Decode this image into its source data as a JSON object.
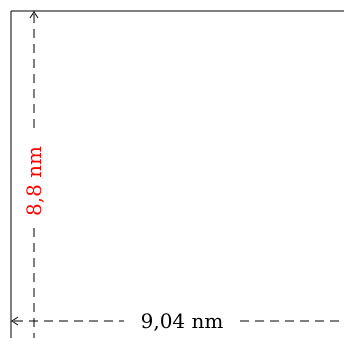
{
  "dimensions": {
    "width_label": "9,04 nm",
    "height_label": "8,8 nm"
  },
  "colors": {
    "line": "#000000",
    "width_label": "#000000",
    "height_label": "#ff0000",
    "background": "#ffffff"
  }
}
